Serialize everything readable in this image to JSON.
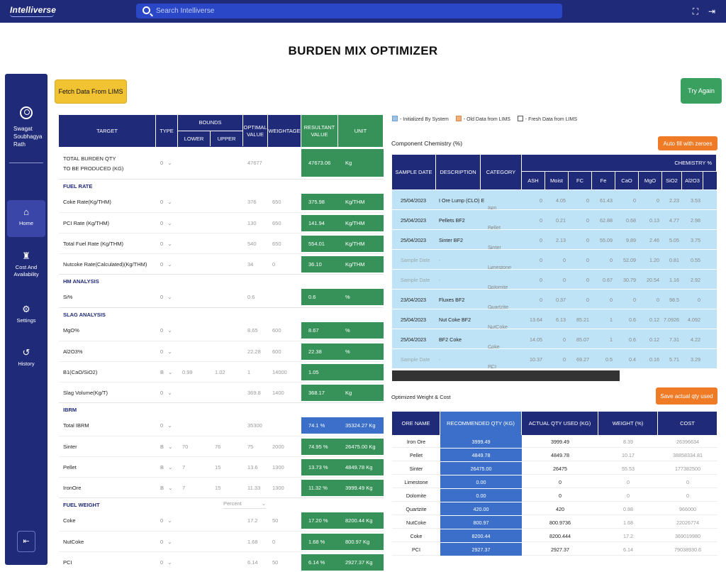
{
  "app": {
    "logo": "Intelliverse",
    "search_placeholder": "Search Intelliverse"
  },
  "page_title": "BURDEN MIX OPTIMIZER",
  "sidebar": {
    "user_name": [
      "Swagat",
      "Soubhagya",
      "Rath"
    ],
    "items": [
      {
        "label": "Home",
        "icon": "home-icon"
      },
      {
        "label": "Cost And Availability",
        "icon": "cost-icon"
      },
      {
        "label": "Settings",
        "icon": "gear-icon"
      },
      {
        "label": "History",
        "icon": "history-icon"
      }
    ]
  },
  "buttons": {
    "fetch": "Fetch Data From LIMS",
    "try_again": "Try Again",
    "auto_fill": "Auto fill with zeroes",
    "save_actual": "Save actual qty used"
  },
  "target_table": {
    "headers": {
      "target": "TARGET",
      "type": "TYPE",
      "bounds": "BOUNDS",
      "lower": "LOWER",
      "upper": "UPPER",
      "optimal": "OPTIMAL VALUE",
      "weightage": "WEIGHTAGE",
      "resultant": "RESULTANT VALUE",
      "unit": "UNIT"
    },
    "rows": [
      {
        "kind": "row",
        "label": "TOTAL BURDEN QTY",
        "label2": "TO BE PRODUCED (KG)",
        "type": "0",
        "lower": "",
        "upper": "",
        "optimal": "47677",
        "weightage": "",
        "result": "47673.06",
        "unit": "Kg"
      },
      {
        "kind": "section",
        "label": "FUEL RATE"
      },
      {
        "kind": "row",
        "label": "Coke Rate(Kg/THM)",
        "type": "0",
        "lower": "",
        "upper": "",
        "optimal": "376",
        "weightage": "650",
        "result": "375.98",
        "unit": "Kg/THM"
      },
      {
        "kind": "row",
        "label": "PCI Rate (Kg/THM)",
        "type": "0",
        "lower": "",
        "upper": "",
        "optimal": "130",
        "weightage": "650",
        "result": "141.94",
        "unit": "Kg/THM"
      },
      {
        "kind": "row",
        "label": "Total Fuel Rate (Kg/THM)",
        "type": "0",
        "lower": "",
        "upper": "",
        "optimal": "540",
        "weightage": "650",
        "result": "554.01",
        "unit": "Kg/THM"
      },
      {
        "kind": "row",
        "label": "Nutcoke Rate(Calculated)(Kg/THM)",
        "type": "0",
        "lower": "",
        "upper": "",
        "optimal": "34",
        "weightage": "0",
        "result": "36.10",
        "unit": "Kg/THM"
      },
      {
        "kind": "section",
        "label": "HM ANALYSIS"
      },
      {
        "kind": "row",
        "label": "Si%",
        "type": "0",
        "lower": "",
        "upper": "",
        "optimal": "0.6",
        "weightage": "",
        "result": "0.6",
        "unit": "%"
      },
      {
        "kind": "section",
        "label": "SLAG ANALYSIS"
      },
      {
        "kind": "row",
        "label": "MgO%",
        "type": "0",
        "lower": "",
        "upper": "",
        "optimal": "8.65",
        "weightage": "600",
        "result": "8.67",
        "unit": "%"
      },
      {
        "kind": "row",
        "label": "Al2O3%",
        "type": "0",
        "lower": "",
        "upper": "",
        "optimal": "22.28",
        "weightage": "600",
        "result": "22.38",
        "unit": "%"
      },
      {
        "kind": "row",
        "label": "B1(CaO/SiO2)",
        "type": "B",
        "lower": "0.99",
        "upper": "1.02",
        "optimal": "1",
        "weightage": "14000",
        "result": "1.05",
        "unit": ""
      },
      {
        "kind": "row",
        "label": "Slag Volume(Kg/T)",
        "type": "0",
        "lower": "",
        "upper": "",
        "optimal": "369.8",
        "weightage": "1400",
        "result": "368.17",
        "unit": "Kg"
      },
      {
        "kind": "section",
        "label": "IBRM"
      },
      {
        "kind": "row",
        "label": "Total IBRM",
        "type": "0",
        "lower": "",
        "upper": "",
        "optimal": "35300",
        "weightage": "",
        "result": "74.1 %",
        "unit": "35324.27 Kg",
        "blue": true
      },
      {
        "kind": "row",
        "label": "Sinter",
        "type": "B",
        "lower": "70",
        "upper": "76",
        "optimal": "75",
        "weightage": "2000",
        "result": "74.95 %",
        "unit": "26475.00 Kg"
      },
      {
        "kind": "row",
        "label": "Pellet",
        "type": "B",
        "lower": "7",
        "upper": "15",
        "optimal": "13.6",
        "weightage": "1300",
        "result": "13.73 %",
        "unit": "4849.78 Kg"
      },
      {
        "kind": "row",
        "label": "IronOre",
        "type": "B",
        "lower": "7",
        "upper": "15",
        "optimal": "11.33",
        "weightage": "1300",
        "result": "11.32 %",
        "unit": "3999.49 Kg"
      },
      {
        "kind": "section",
        "label": "FUEL WEIGHT",
        "select": "Percent"
      },
      {
        "kind": "row",
        "label": "Coke",
        "type": "0",
        "lower": "",
        "upper": "",
        "optimal": "17.2",
        "weightage": "50",
        "result": "17.20 %",
        "unit": "8200.44 Kg"
      },
      {
        "kind": "row",
        "label": "NutCoke",
        "type": "0",
        "lower": "",
        "upper": "",
        "optimal": "1.68",
        "weightage": "0",
        "result": "1.68 %",
        "unit": "800.97 Kg"
      },
      {
        "kind": "row",
        "label": "PCI",
        "type": "0",
        "lower": "",
        "upper": "",
        "optimal": "6.14",
        "weightage": "50",
        "result": "6.14 %",
        "unit": "2927.37 Kg"
      }
    ]
  },
  "legend": [
    "- Initialized By System",
    "- Old Data from LIMS",
    "- Fresh Data from LIMS"
  ],
  "legend_colors": [
    "#9cc3e8",
    "#f3b07b",
    "#ffffff"
  ],
  "component_chemistry": {
    "title": "Component Chemistry (%)",
    "headers": {
      "date": "SAMPLE DATE",
      "desc": "DESCRIPTION",
      "cat": "CATEGORY",
      "chem": "CHEMISTRY %",
      "cols": [
        "ASH",
        "Moist",
        "FC",
        "Fe",
        "CaO",
        "MgO",
        "SiO2",
        "Al2O3"
      ]
    },
    "rows": [
      {
        "date": "25/04/2023",
        "desc": "I Ore Lump (CLO) E",
        "cat": "Iron Ore",
        "vals": [
          "0",
          "4.05",
          "0",
          "61.43",
          "0",
          "0",
          "2.23",
          "3.53"
        ]
      },
      {
        "date": "25/04/2023",
        "desc": "Pellets BF2",
        "cat": "Pellet",
        "vals": [
          "0",
          "0.21",
          "0",
          "62.88",
          "0.68",
          "0.13",
          "4.77",
          "2.98"
        ]
      },
      {
        "date": "25/04/2023",
        "desc": "Sinter BF2",
        "cat": "Sinter",
        "vals": [
          "0",
          "2.13",
          "0",
          "55.09",
          "9.89",
          "2.46",
          "5.05",
          "3.75"
        ]
      },
      {
        "date": "Sample Date",
        "desc": "-",
        "cat": "Limestone",
        "vals": [
          "0",
          "0",
          "0",
          "0",
          "52.09",
          "1.20",
          "0.81",
          "0.55"
        ],
        "placeholder": true
      },
      {
        "date": "Sample Date",
        "desc": "-",
        "cat": "Dolomite",
        "vals": [
          "0",
          "0",
          "0",
          "0.67",
          "30.79",
          "20.54",
          "1.16",
          "2.92"
        ],
        "placeholder": true
      },
      {
        "date": "23/04/2023",
        "desc": "Fluxes BF2",
        "cat": "Quartzite",
        "vals": [
          "0",
          "0.37",
          "0",
          "0",
          "0",
          "0",
          "98.5",
          "0"
        ]
      },
      {
        "date": "25/04/2023",
        "desc": "Nut Coke BF2",
        "cat": "NutCoke",
        "vals": [
          "13.64",
          "6.13",
          "85.21",
          "1",
          "0.6",
          "0.12",
          "7.0926",
          "4.092"
        ]
      },
      {
        "date": "25/04/2023",
        "desc": "BF2 Coke",
        "cat": "Coke",
        "vals": [
          "14.05",
          "0",
          "85.07",
          "1",
          "0.6",
          "0.12",
          "7.31",
          "4.22"
        ]
      },
      {
        "date": "Sample Date",
        "desc": "-",
        "cat": "PCI",
        "vals": [
          "10.37",
          "0",
          "69.27",
          "0.5",
          "0.4",
          "0.16",
          "5.71",
          "3.29"
        ],
        "placeholder": true
      }
    ]
  },
  "optimized": {
    "title": "Optimized Weight & Cost",
    "headers": [
      "ORE NAME",
      "RECOMMENDED QTY (KG)",
      "ACTUAL QTY USED (KG)",
      "WEIGHT (%)",
      "COST"
    ],
    "rows": [
      {
        "ore": "Iron Ore",
        "rec": "3999.49",
        "act": "3999.49",
        "wt": "8.39",
        "cost": "26396634"
      },
      {
        "ore": "Pellet",
        "rec": "4849.78",
        "act": "4849.78",
        "wt": "10.17",
        "cost": "38858334.81"
      },
      {
        "ore": "Sinter",
        "rec": "26475.00",
        "act": "26475",
        "wt": "55.53",
        "cost": "177382500"
      },
      {
        "ore": "Limestone",
        "rec": "0.00",
        "act": "0",
        "wt": "0",
        "cost": "0"
      },
      {
        "ore": "Dolomite",
        "rec": "0.00",
        "act": "0",
        "wt": "0",
        "cost": "0"
      },
      {
        "ore": "Quartzite",
        "rec": "420.00",
        "act": "420",
        "wt": "0.88",
        "cost": "966000"
      },
      {
        "ore": "NutCoke",
        "rec": "800.97",
        "act": "800.9736",
        "wt": "1.68",
        "cost": "22026774"
      },
      {
        "ore": "Coke",
        "rec": "8200.44",
        "act": "8200.444",
        "wt": "17.2",
        "cost": "369019980"
      },
      {
        "ore": "PCI",
        "rec": "2927.37",
        "act": "2927.37",
        "wt": "6.14",
        "cost": "79038930.6"
      }
    ]
  }
}
